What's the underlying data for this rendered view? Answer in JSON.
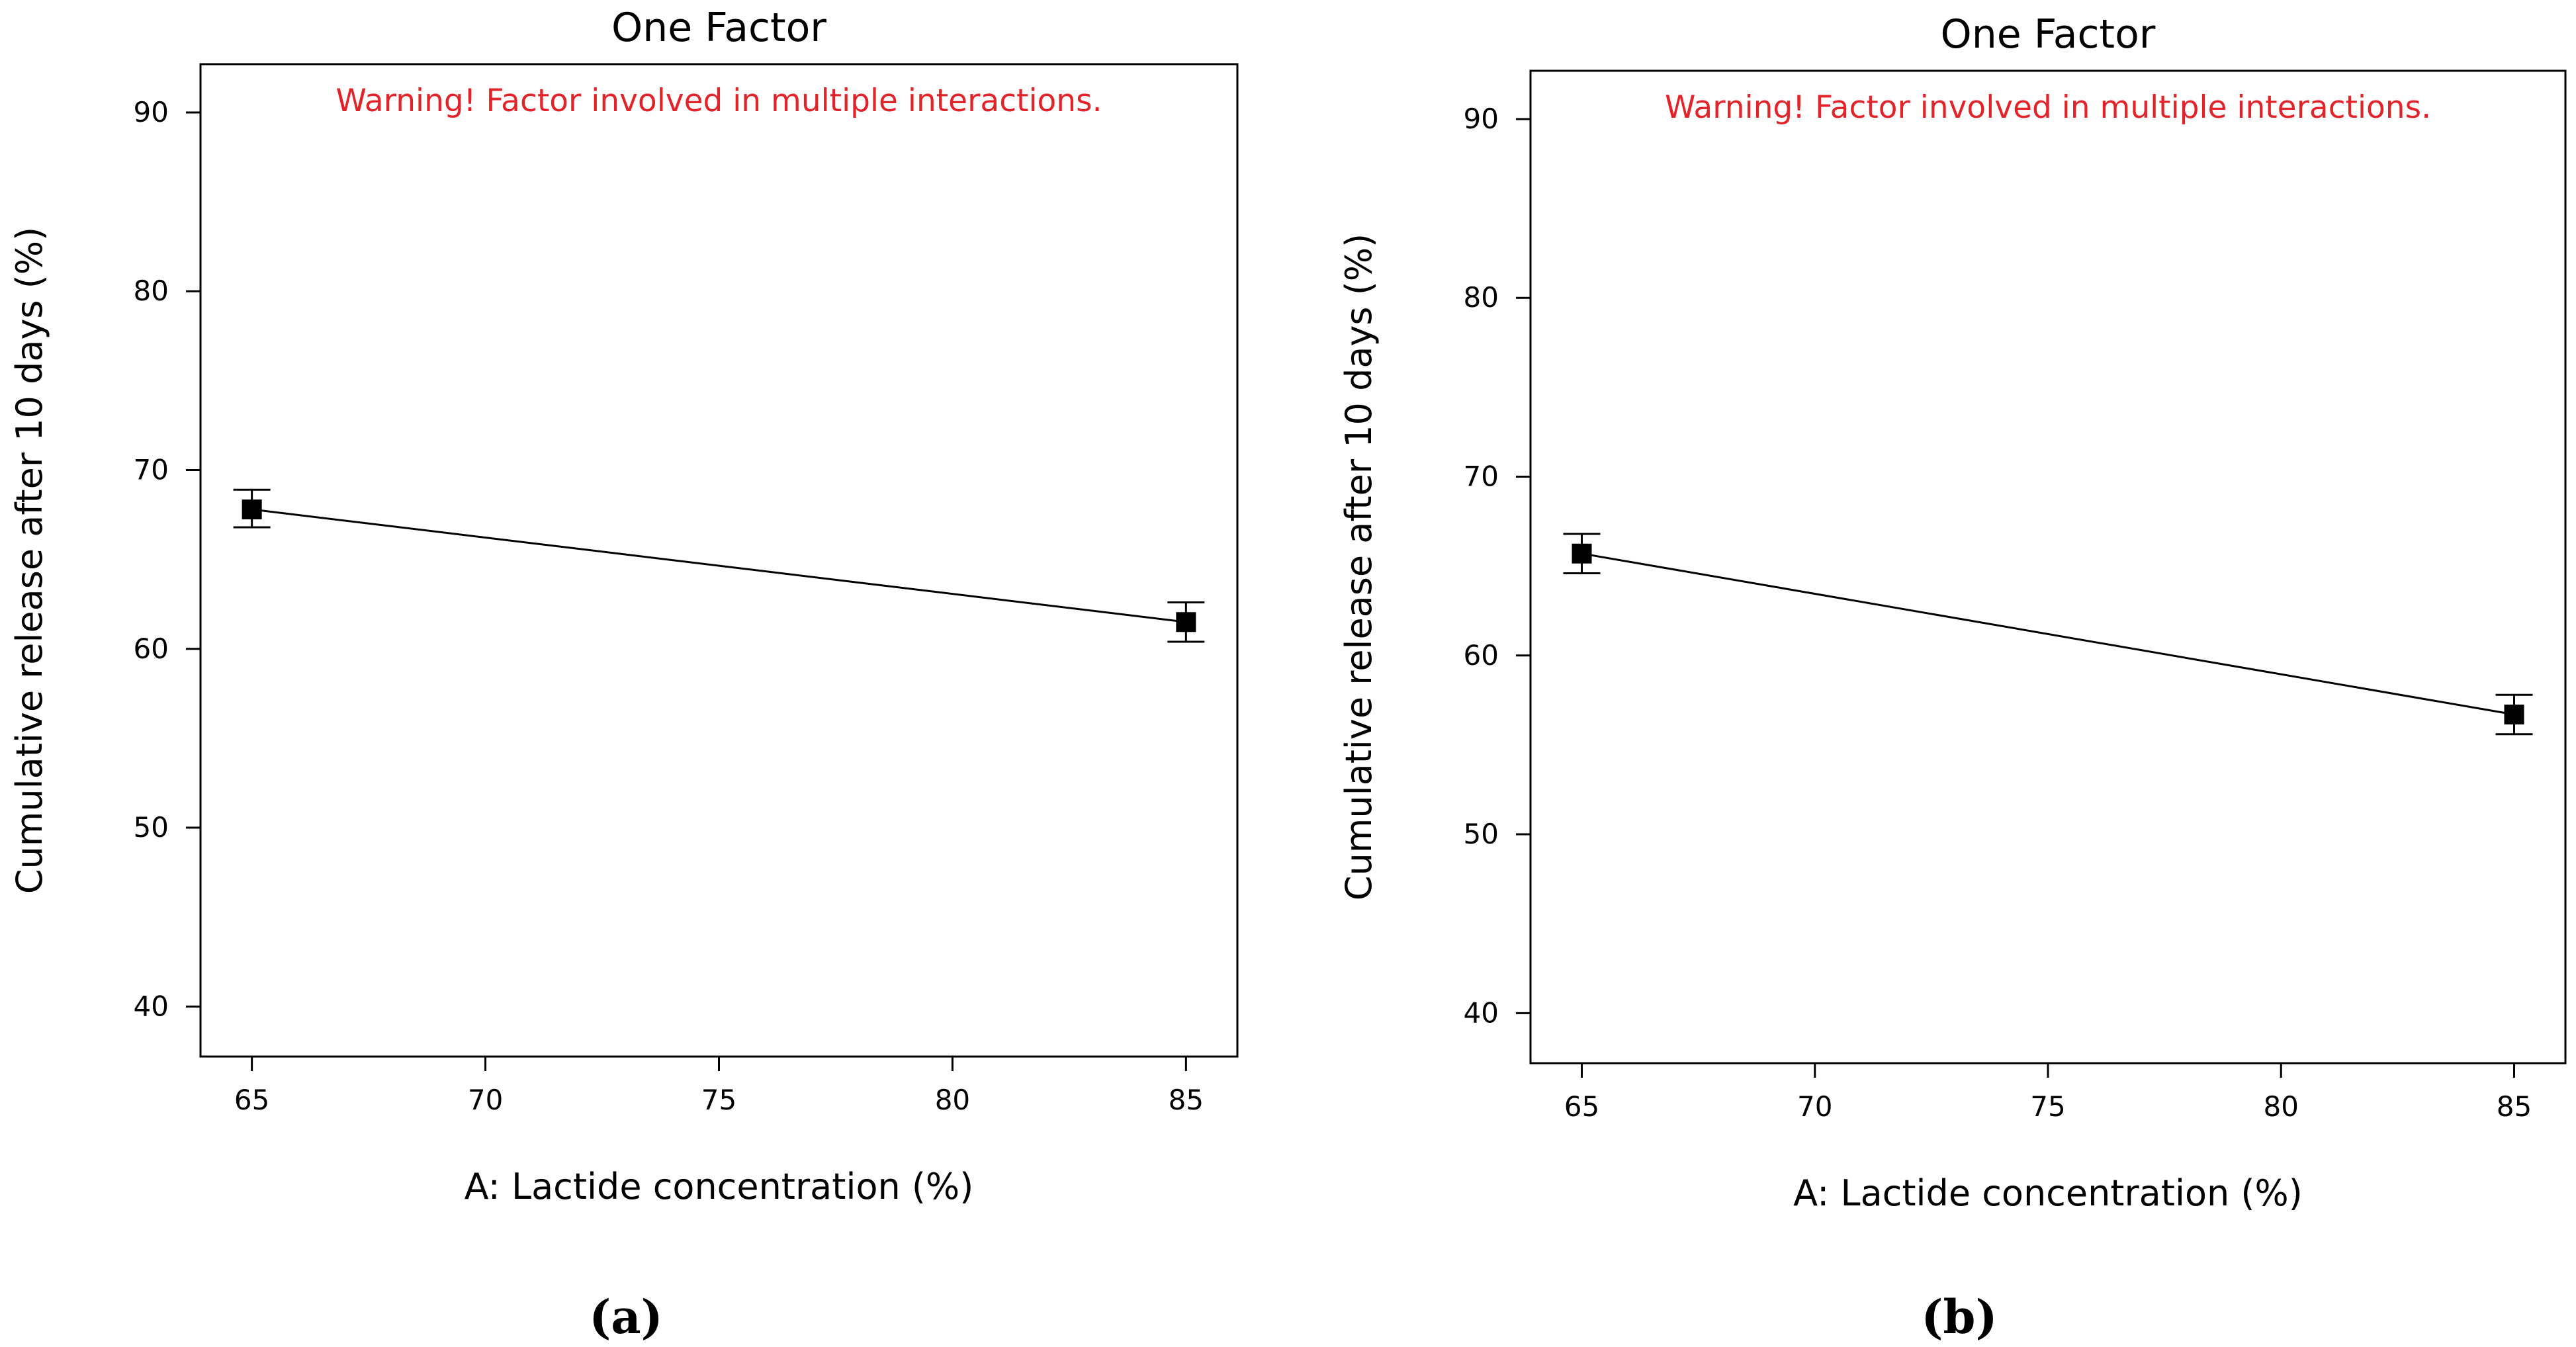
{
  "chart_data": [
    {
      "panel_label": "(a)",
      "type": "line",
      "title": "One Factor",
      "warning": "Warning! Factor involved in multiple interactions.",
      "warning_color": "#e0242a",
      "xlabel": "A: Lactide concentration (%)",
      "ylabel": "Cumulative release after 10 days (%)",
      "xlim": [
        63.9,
        86.1
      ],
      "ylim": [
        37.2,
        92.7
      ],
      "xticks": [
        "65",
        "70",
        "75",
        "80",
        "85"
      ],
      "yticks": [
        "40",
        "50",
        "60",
        "70",
        "80",
        "90"
      ],
      "series": [
        {
          "name": "Cumulative release",
          "x": [
            65,
            85
          ],
          "y": [
            67.8,
            61.5
          ],
          "err_low": [
            66.8,
            60.4
          ],
          "err_high": [
            68.9,
            62.6
          ]
        }
      ]
    },
    {
      "panel_label": "(b)",
      "type": "line",
      "title": "One Factor",
      "warning": "Warning! Factor involved in multiple interactions.",
      "warning_color": "#e0242a",
      "xlabel": "A: Lactide concentration (%)",
      "ylabel": "Cumulative release after 10 days (%)",
      "xlim": [
        63.9,
        86.1
      ],
      "ylim": [
        37.2,
        92.7
      ],
      "xticks": [
        "65",
        "70",
        "75",
        "80",
        "85"
      ],
      "yticks": [
        "40",
        "50",
        "60",
        "70",
        "80",
        "90"
      ],
      "series": [
        {
          "name": "Cumulative release",
          "x": [
            65,
            85
          ],
          "y": [
            65.7,
            56.7
          ],
          "err_low": [
            64.6,
            55.6
          ],
          "err_high": [
            66.8,
            57.8
          ]
        }
      ]
    }
  ]
}
